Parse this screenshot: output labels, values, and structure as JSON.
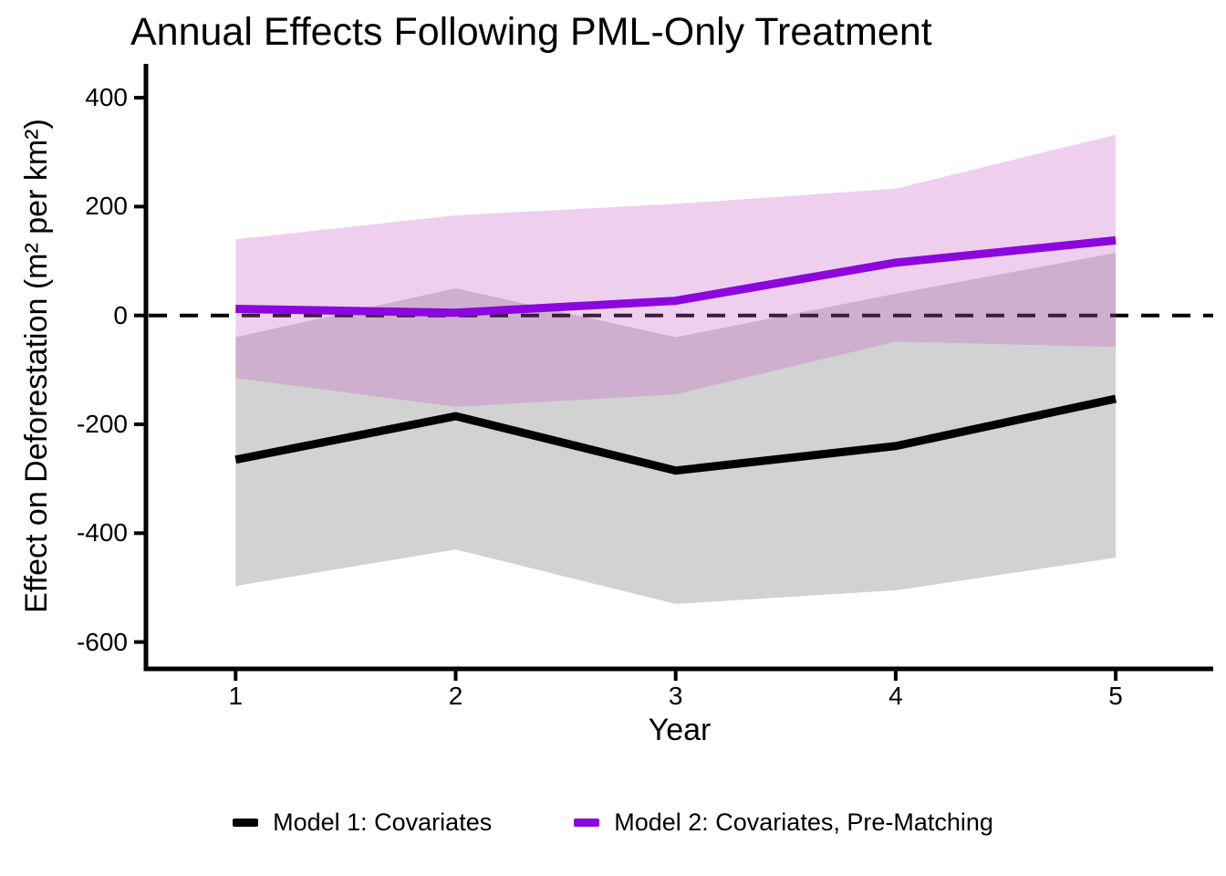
{
  "title": "Annual Effects Following PML-Only Treatment",
  "axes": {
    "x": {
      "label": "Year",
      "ticks": [
        1,
        2,
        3,
        4,
        5
      ],
      "tick_labels": [
        "1",
        "2",
        "3",
        "4",
        "5"
      ]
    },
    "y": {
      "label": "Effect on Deforestation (m² per km²)",
      "ticks": [
        400,
        200,
        0,
        -200,
        -400,
        -600
      ],
      "tick_labels": [
        "400",
        "200",
        "0",
        "-200",
        "-400",
        "-600"
      ]
    }
  },
  "legend": [
    {
      "label": "Model 1: Covariates",
      "color": "#000000"
    },
    {
      "label": "Model 2: Covariates, Pre-Matching",
      "color": "#8B06DF"
    }
  ],
  "colors": {
    "background": "#FFFFFF",
    "axis": "#000000",
    "text": "#000000",
    "zero_line": "#000000",
    "model1_line": "#000000",
    "model1_band": "#D2D2D2",
    "model2_line": "#8B06DF",
    "model2_band": "rgba(200,100,200,0.30)"
  },
  "chart_data": {
    "type": "line",
    "title": "Annual Effects Following PML-Only Treatment",
    "xlabel": "Year",
    "ylabel": "Effect on Deforestation (m² per km²)",
    "x": [
      1,
      2,
      3,
      4,
      5
    ],
    "series": [
      {
        "name": "Model 1: Covariates",
        "color": "#000000",
        "band_color": "#D2D2D2",
        "values": [
          -265,
          -185,
          -285,
          -240,
          -153
        ],
        "ci_lower": [
          -497,
          -430,
          -530,
          -505,
          -445
        ],
        "ci_upper": [
          -40,
          50,
          -40,
          40,
          115
        ]
      },
      {
        "name": "Model 2: Covariates, Pre-Matching",
        "color": "#8B06DF",
        "band_color": "rgba(200,100,200,0.30)",
        "values": [
          12,
          5,
          27,
          97,
          138
        ],
        "ci_lower": [
          -115,
          -168,
          -145,
          -48,
          -58
        ],
        "ci_upper": [
          140,
          184,
          205,
          233,
          332
        ]
      }
    ],
    "reference_line_y": 0,
    "ylim": [
      -650,
      460
    ],
    "xlim": [
      0.6,
      5.45
    ],
    "grid": false,
    "legend_position": "bottom"
  }
}
